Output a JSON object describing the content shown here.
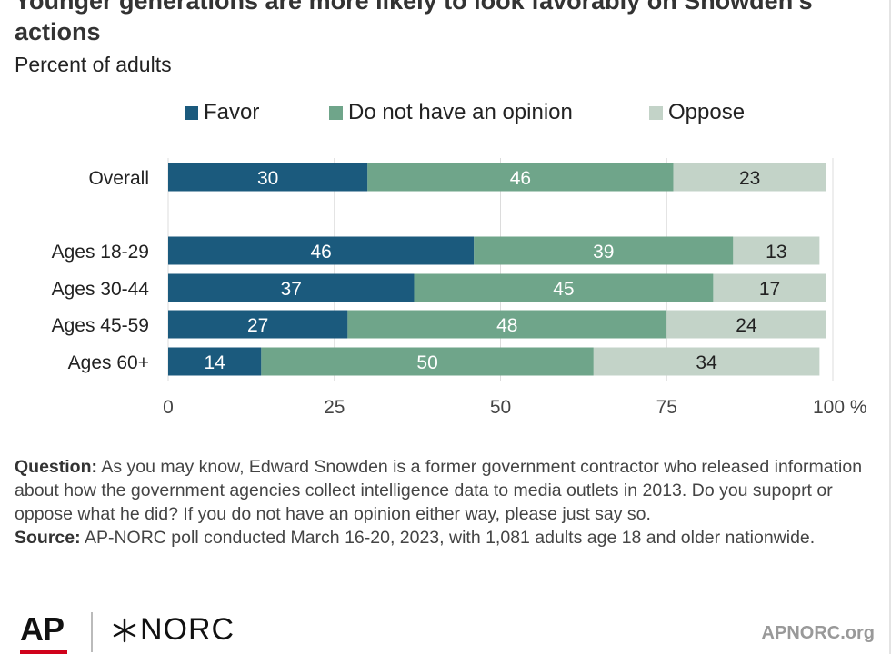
{
  "title": "Younger generations are more likely to look favorably on Snowden's actions",
  "subtitle": "Percent of adults",
  "legend": [
    {
      "label": "Favor",
      "color": "#1b5a7d"
    },
    {
      "label": "Do not have an opinion",
      "color": "#6fa58a"
    },
    {
      "label": "Oppose",
      "color": "#c3d3c8"
    }
  ],
  "chart_data": {
    "type": "bar",
    "orientation": "horizontal",
    "stacked": true,
    "categories": [
      "Overall",
      "Ages 18-29",
      "Ages 30-44",
      "Ages 45-59",
      "Ages 60+"
    ],
    "series": [
      {
        "name": "Favor",
        "values": [
          30,
          46,
          37,
          27,
          14
        ],
        "color": "#1b5a7d",
        "label_color": "#ffffff"
      },
      {
        "name": "Do not have an opinion",
        "values": [
          46,
          39,
          45,
          48,
          50
        ],
        "color": "#6fa58a",
        "label_color": "#ffffff"
      },
      {
        "name": "Oppose",
        "values": [
          23,
          13,
          17,
          24,
          34
        ],
        "color": "#c3d3c8",
        "label_color": "#222222"
      }
    ],
    "xlim": [
      0,
      100
    ],
    "xticks": [
      "0",
      "25",
      "50",
      "75",
      "100 %"
    ],
    "grid": true,
    "legend_position": "top"
  },
  "footnote": {
    "question_label": "Question:",
    "question_text": "As you may know, Edward Snowden is a former government contractor who released information about how the government agencies collect intelligence data to media outlets in 2013. Do you supoprt or oppose what he did? If you do not have an opinion either way, please just say so.",
    "source_label": "Source:",
    "source_text": "AP-NORC poll conducted March 16-20, 2023, with 1,081 adults age 18 and older nationwide."
  },
  "branding": {
    "ap_logo": "AP",
    "norc_logo": "NORC",
    "site": "APNORC.org"
  }
}
